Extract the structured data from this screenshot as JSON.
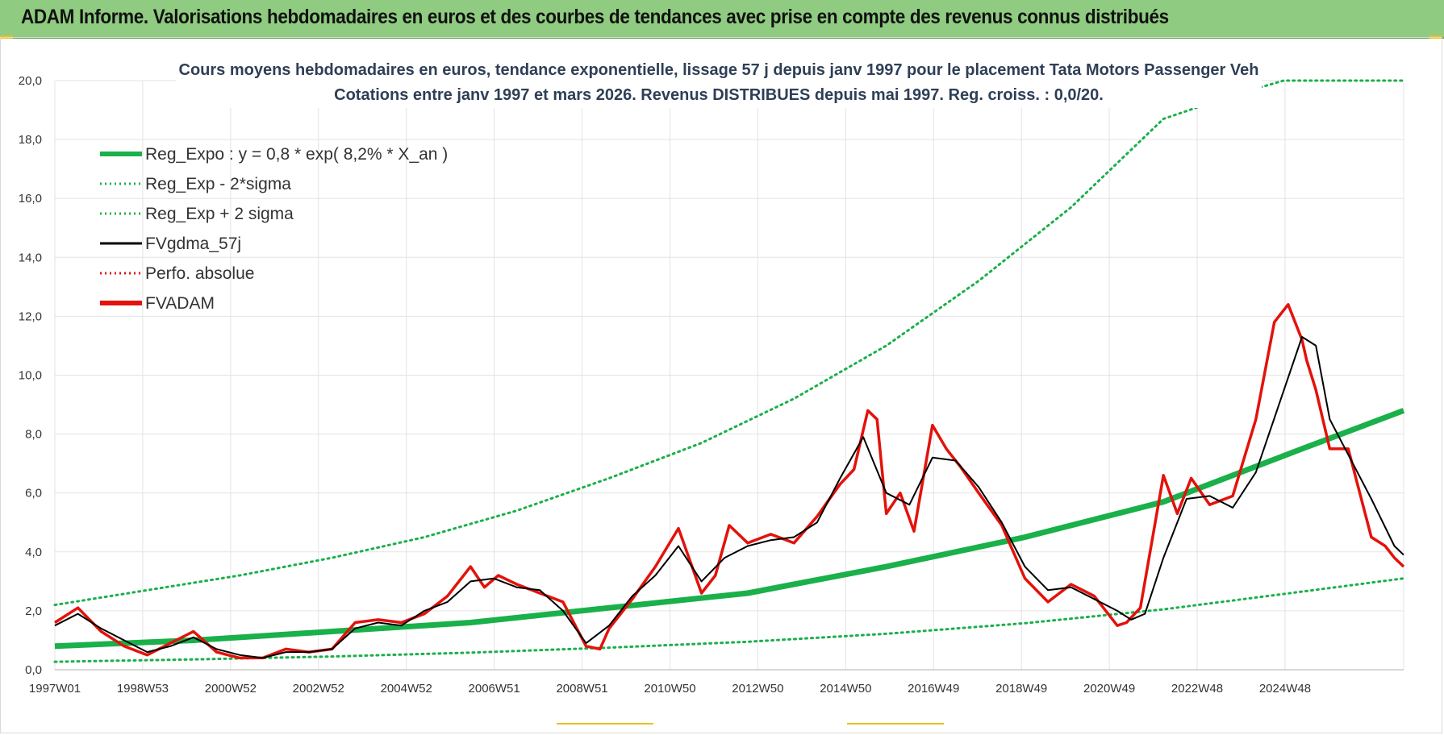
{
  "banner": {
    "title": "ADAM Informe. Valorisations hebdomadaires en euros et des courbes de tendances avec prise en compte des revenus connus distribués"
  },
  "colors": {
    "banner_bg": "#8fcb80",
    "green": "#1ab04a",
    "black": "#000000",
    "red": "#e3120b",
    "grid": "#e3e3e3"
  },
  "chart_data": {
    "type": "line",
    "title_line1": "Cours moyens hebdomadaires en euros, tendance exponentielle, lissage 57 j depuis janv 1997 pour le placement Tata Motors Passenger Veh",
    "title_line2": "Cotations entre janv 1997 et mars 2026. Revenus DISTRIBUES depuis mai 1997. Reg. croiss. : 0,0/20.",
    "ylim": [
      0,
      20
    ],
    "xlim": [
      1997.0,
      2026.2
    ],
    "grid": true,
    "legend_position": "top-left",
    "y_ticks": [
      "0,0",
      "2,0",
      "4,0",
      "6,0",
      "8,0",
      "10,0",
      "12,0",
      "14,0",
      "16,0",
      "18,0",
      "20,0"
    ],
    "x_tick_labels": [
      "1997W01",
      "1998W53",
      "2000W52",
      "2002W52",
      "2004W52",
      "2006W51",
      "2008W51",
      "2010W50",
      "2012W50",
      "2014W50",
      "2016W49",
      "2018W49",
      "2020W49",
      "2022W48",
      "2024W48"
    ],
    "legend": [
      {
        "name": "Reg_Expo : y = 0,8 * exp( 8,2% *  X_an )",
        "color": "#1ab04a",
        "style": "solid-thick"
      },
      {
        "name": "Reg_Exp - 2*sigma",
        "color": "#1ab04a",
        "style": "dotted"
      },
      {
        "name": "Reg_Exp + 2 sigma",
        "color": "#1ab04a",
        "style": "dotted"
      },
      {
        "name": "FVgdma_57j",
        "color": "#000000",
        "style": "solid"
      },
      {
        "name": "Perfo. absolue",
        "color": "#e3120b",
        "style": "dotted"
      },
      {
        "name": "FVADAM",
        "color": "#e3120b",
        "style": "solid-thick"
      }
    ],
    "regression": {
      "name": "Reg_Expo : y = 0,8 * exp( 8,2% *  X_an )",
      "x": [
        1997.0,
        2000.0,
        2003.0,
        2006.0,
        2009.0,
        2012.0,
        2015.0,
        2018.0,
        2021.0,
        2024.0,
        2026.2
      ],
      "y": [
        0.8,
        1.0,
        1.3,
        1.6,
        2.1,
        2.6,
        3.5,
        4.5,
        5.7,
        7.5,
        8.8
      ]
    },
    "lower_band": {
      "name": "Reg_Exp - 2*sigma",
      "x": [
        1997.0,
        2000.0,
        2003.0,
        2006.0,
        2009.0,
        2012.0,
        2015.0,
        2018.0,
        2021.0,
        2024.0,
        2026.2
      ],
      "y": [
        0.27,
        0.35,
        0.45,
        0.58,
        0.75,
        0.95,
        1.22,
        1.58,
        2.05,
        2.65,
        3.1
      ]
    },
    "upper_band": {
      "name": "Reg_Exp + 2 sigma",
      "x": [
        1997.0,
        1999.0,
        2001.0,
        2003.0,
        2005.0,
        2007.0,
        2009.0,
        2011.0,
        2013.0,
        2015.0,
        2017.0,
        2019.0,
        2021.0,
        2022.5,
        2023.6,
        2026.2
      ],
      "y": [
        2.2,
        2.7,
        3.2,
        3.8,
        4.5,
        5.4,
        6.5,
        7.7,
        9.2,
        11.0,
        13.2,
        15.7,
        18.7,
        19.5,
        20.0,
        20.0
      ]
    },
    "fvgdma": {
      "name": "FVgdma_57j",
      "x": [
        1997.0,
        1997.5,
        1998.0,
        1998.5,
        1999.0,
        1999.5,
        2000.0,
        2000.5,
        2001.0,
        2001.5,
        2002.0,
        2002.5,
        2003.0,
        2003.5,
        2004.0,
        2004.5,
        2005.0,
        2005.5,
        2006.0,
        2006.5,
        2007.0,
        2007.5,
        2008.0,
        2008.5,
        2009.0,
        2009.5,
        2010.0,
        2010.5,
        2011.0,
        2011.5,
        2012.0,
        2012.5,
        2013.0,
        2013.5,
        2014.0,
        2014.5,
        2015.0,
        2015.5,
        2016.0,
        2016.5,
        2017.0,
        2017.5,
        2018.0,
        2018.5,
        2019.0,
        2019.5,
        2020.0,
        2020.3,
        2020.6,
        2021.0,
        2021.5,
        2022.0,
        2022.5,
        2023.0,
        2023.5,
        2024.0,
        2024.3,
        2024.6,
        2025.0,
        2025.5,
        2026.0,
        2026.2
      ],
      "y": [
        1.5,
        1.9,
        1.4,
        1.0,
        0.6,
        0.8,
        1.1,
        0.7,
        0.5,
        0.4,
        0.6,
        0.6,
        0.7,
        1.4,
        1.6,
        1.5,
        2.0,
        2.3,
        3.0,
        3.1,
        2.8,
        2.7,
        2.0,
        0.9,
        1.5,
        2.5,
        3.2,
        4.2,
        3.0,
        3.8,
        4.2,
        4.4,
        4.5,
        5.0,
        6.5,
        7.9,
        6.0,
        5.6,
        7.2,
        7.1,
        6.2,
        5.0,
        3.5,
        2.7,
        2.8,
        2.4,
        2.0,
        1.7,
        1.9,
        3.8,
        5.8,
        5.9,
        5.5,
        6.7,
        9.0,
        11.3,
        11.0,
        8.5,
        7.3,
        5.8,
        4.2,
        3.9
      ]
    },
    "fvadam": {
      "name": "FVADAM",
      "x": [
        1997.0,
        1997.5,
        1998.0,
        1998.5,
        1999.0,
        1999.5,
        2000.0,
        2000.5,
        2001.0,
        2001.5,
        2002.0,
        2002.5,
        2003.0,
        2003.5,
        2004.0,
        2004.5,
        2005.0,
        2005.5,
        2006.0,
        2006.3,
        2006.6,
        2007.0,
        2007.5,
        2008.0,
        2008.5,
        2008.8,
        2009.0,
        2009.5,
        2010.0,
        2010.5,
        2011.0,
        2011.3,
        2011.6,
        2012.0,
        2012.5,
        2013.0,
        2013.5,
        2014.0,
        2014.3,
        2014.6,
        2014.8,
        2015.0,
        2015.3,
        2015.6,
        2016.0,
        2016.3,
        2016.6,
        2017.0,
        2017.5,
        2018.0,
        2018.5,
        2019.0,
        2019.5,
        2020.0,
        2020.2,
        2020.5,
        2021.0,
        2021.3,
        2021.6,
        2022.0,
        2022.5,
        2023.0,
        2023.4,
        2023.7,
        2024.0,
        2024.1,
        2024.3,
        2024.6,
        2025.0,
        2025.5,
        2025.8,
        2026.0,
        2026.2
      ],
      "y": [
        1.6,
        2.1,
        1.3,
        0.8,
        0.5,
        0.9,
        1.3,
        0.6,
        0.4,
        0.4,
        0.7,
        0.6,
        0.7,
        1.6,
        1.7,
        1.6,
        1.9,
        2.5,
        3.5,
        2.8,
        3.2,
        2.9,
        2.6,
        2.3,
        0.8,
        0.7,
        1.4,
        2.4,
        3.5,
        4.8,
        2.6,
        3.2,
        4.9,
        4.3,
        4.6,
        4.3,
        5.2,
        6.3,
        6.8,
        8.8,
        8.5,
        5.3,
        6.0,
        4.7,
        8.3,
        7.5,
        6.9,
        6.0,
        4.9,
        3.1,
        2.3,
        2.9,
        2.5,
        1.5,
        1.6,
        2.1,
        6.6,
        5.3,
        6.5,
        5.6,
        5.9,
        8.5,
        11.8,
        12.4,
        11.2,
        10.5,
        9.5,
        7.5,
        7.5,
        4.5,
        4.2,
        3.8,
        3.5
      ]
    }
  }
}
